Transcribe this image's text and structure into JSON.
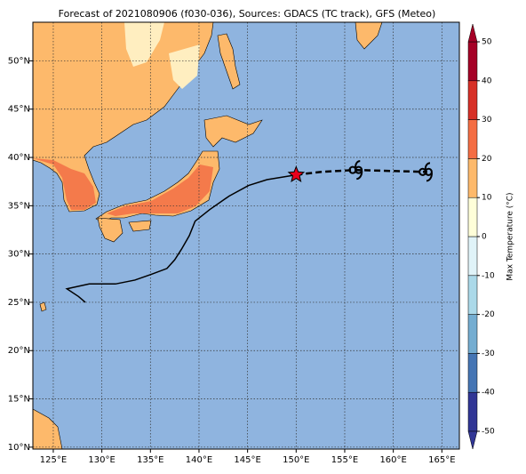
{
  "chart_data": {
    "type": "map",
    "title": "Forecast of 2021080906 (f030-036), Sources: GDACS (TC track), GFS (Meteo)",
    "xlim": [
      122.9,
      166.8
    ],
    "ylim": [
      9.8,
      54
    ],
    "xticks": [
      {
        "value": 125,
        "label": "125°E"
      },
      {
        "value": 130,
        "label": "130°E"
      },
      {
        "value": 135,
        "label": "135°E"
      },
      {
        "value": 140,
        "label": "140°E"
      },
      {
        "value": 145,
        "label": "145°E"
      },
      {
        "value": 150,
        "label": "150°E"
      },
      {
        "value": 155,
        "label": "155°E"
      },
      {
        "value": 160,
        "label": "160°E"
      },
      {
        "value": 165,
        "label": "165°E"
      }
    ],
    "yticks": [
      {
        "value": 10,
        "label": "10°N"
      },
      {
        "value": 15,
        "label": "15°N"
      },
      {
        "value": 20,
        "label": "20°N"
      },
      {
        "value": 25,
        "label": "25°N"
      },
      {
        "value": 30,
        "label": "30°N"
      },
      {
        "value": 35,
        "label": "35°N"
      },
      {
        "value": 40,
        "label": "40°N"
      },
      {
        "value": 45,
        "label": "45°N"
      },
      {
        "value": 50,
        "label": "50°N"
      }
    ],
    "grid": true,
    "tracks": [
      {
        "style": "solid",
        "color": "#000000",
        "x": [
          128.3,
          127.6,
          126.4,
          128.7,
          131.4,
          133.4,
          135.1,
          136.7,
          137.5,
          138.2,
          139.0,
          139.6,
          141.1,
          143.1,
          145.1,
          147.0,
          150.0
        ],
        "y": [
          25.0,
          25.6,
          26.4,
          26.9,
          26.9,
          27.3,
          27.9,
          28.5,
          29.4,
          30.5,
          31.9,
          33.4,
          34.6,
          36.0,
          37.1,
          37.7,
          38.2
        ]
      },
      {
        "style": "dashed",
        "color": "#000000",
        "x": [
          150.0,
          152.5,
          156.1,
          159.8,
          163.5
        ],
        "y": [
          38.2,
          38.5,
          38.7,
          38.6,
          38.5
        ]
      }
    ],
    "current_position": {
      "x": 150.0,
      "y": 38.2,
      "color": "#e8001c"
    },
    "cyclone_symbols": {
      "x": [
        156.4,
        163.6
      ],
      "y": [
        38.7,
        38.5
      ]
    },
    "colorbar": {
      "label": "Max Temperature (°C)",
      "ticks": [
        -50,
        -40,
        -30,
        -20,
        -10,
        0,
        10,
        20,
        30,
        40,
        50
      ],
      "colors": [
        "#313695",
        "#4575b4",
        "#74add1",
        "#abd9e9",
        "#e0f3f8",
        "#ffffd9",
        "#fdb96b",
        "#f46d43",
        "#d73027",
        "#a50026"
      ]
    }
  }
}
